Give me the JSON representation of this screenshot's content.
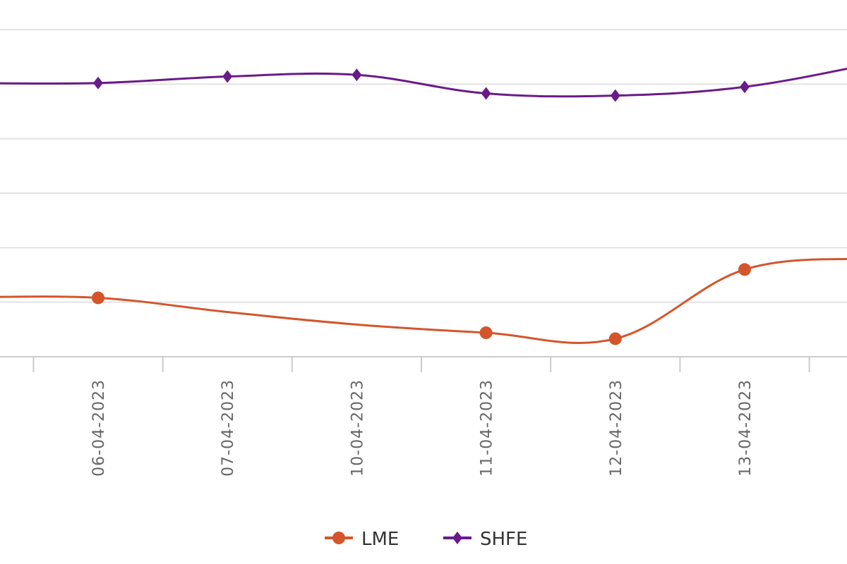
{
  "chart_data": {
    "type": "line",
    "categories": [
      "06-04-2023",
      "07-04-2023",
      "10-04-2023",
      "11-04-2023",
      "12-04-2023",
      "13-04-2023"
    ],
    "series": [
      {
        "name": "LME",
        "color": "#d4552b",
        "marker": "circle",
        "values": [
          230.8,
          228.2,
          225.9,
          224.4,
          223.3,
          236.0
        ],
        "marker_shown": [
          true,
          false,
          false,
          true,
          true,
          true
        ]
      },
      {
        "name": "SHFE",
        "color": "#6a1b8a",
        "marker": "diamond",
        "values": [
          270.2,
          271.4,
          271.7,
          268.3,
          267.9,
          269.5
        ]
      }
    ],
    "ylim": [
      220,
      280
    ],
    "grid": true,
    "legend": "bottom-center",
    "title": "",
    "xlabel": "",
    "ylabel": ""
  }
}
